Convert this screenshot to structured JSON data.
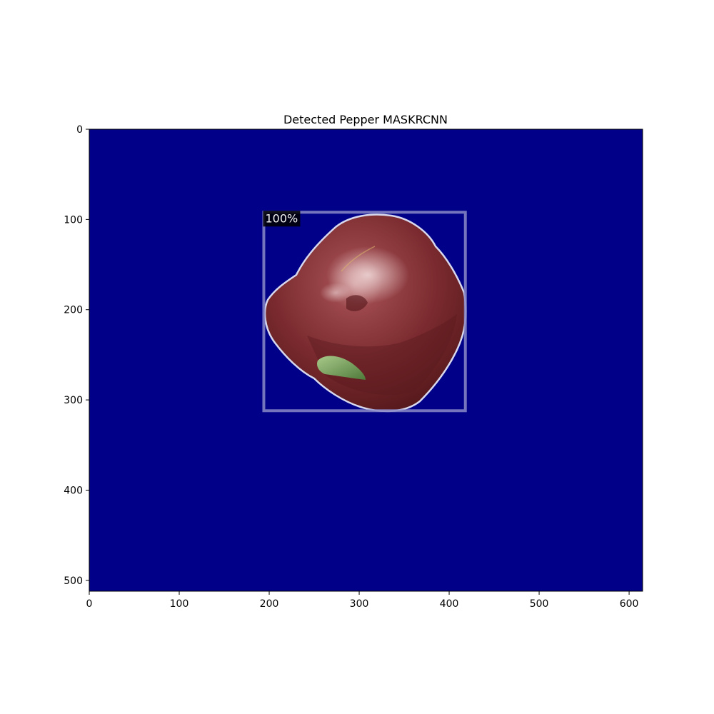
{
  "title": "Detected Pepper MASKRCNN",
  "image": {
    "width": 615,
    "height": 512,
    "background_color": "#000088",
    "subject": "red bell pepper with green stem"
  },
  "axes": {
    "x_ticks": [
      "0",
      "100",
      "200",
      "300",
      "400",
      "500",
      "600"
    ],
    "y_ticks": [
      "0",
      "100",
      "200",
      "300",
      "400",
      "500"
    ]
  },
  "detections": [
    {
      "label": "pepper",
      "score_text": "100%",
      "box": {
        "x1": 194,
        "y1": 92,
        "x2": 418,
        "y2": 312
      },
      "box_color": "#8a8ac8",
      "mask_outline_color": "#d8d8ee",
      "mask_fill_color": "#7b2a2e"
    }
  ]
}
